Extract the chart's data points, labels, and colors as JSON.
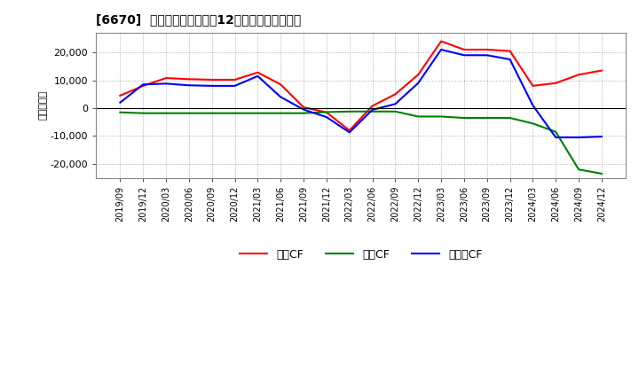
{
  "title": "[6670]  キャッシュフローの12か月移動合計の推移",
  "ylabel": "（百万円）",
  "x_labels": [
    "2019/09",
    "2019/12",
    "2020/03",
    "2020/06",
    "2020/09",
    "2020/12",
    "2021/03",
    "2021/06",
    "2021/09",
    "2021/12",
    "2022/03",
    "2022/06",
    "2022/09",
    "2022/12",
    "2023/03",
    "2023/06",
    "2023/09",
    "2023/12",
    "2024/03",
    "2024/06",
    "2024/09",
    "2024/12"
  ],
  "operating_cf": [
    4500,
    8000,
    10800,
    10400,
    10200,
    10200,
    12800,
    8500,
    300,
    -1500,
    -8000,
    800,
    5000,
    12000,
    24000,
    21000,
    21000,
    20500,
    8000,
    9000,
    12000,
    13500
  ],
  "investing_cf": [
    -1500,
    -1800,
    -1800,
    -1800,
    -1800,
    -1800,
    -1800,
    -1800,
    -1800,
    -1400,
    -1200,
    -1200,
    -1200,
    -3000,
    -3000,
    -3500,
    -3500,
    -3500,
    -5500,
    -8500,
    -22000,
    -23500
  ],
  "free_cf": [
    2000,
    8500,
    8800,
    8200,
    8000,
    8000,
    11500,
    4000,
    -500,
    -3200,
    -8700,
    -600,
    1500,
    9000,
    21000,
    19000,
    19000,
    17500,
    1000,
    -10500,
    -10500,
    -10200
  ],
  "ylim": [
    -25000,
    27000
  ],
  "yticks": [
    -20000,
    -10000,
    0,
    10000,
    20000
  ],
  "bg_color": "#ffffff",
  "plot_bg_color": "#ffffff",
  "grid_color": "#aaaaaa",
  "operating_color": "#ff0000",
  "investing_color": "#008000",
  "free_color": "#0000ff",
  "legend_labels": [
    "営業CF",
    "投資CF",
    "フリーCF"
  ]
}
